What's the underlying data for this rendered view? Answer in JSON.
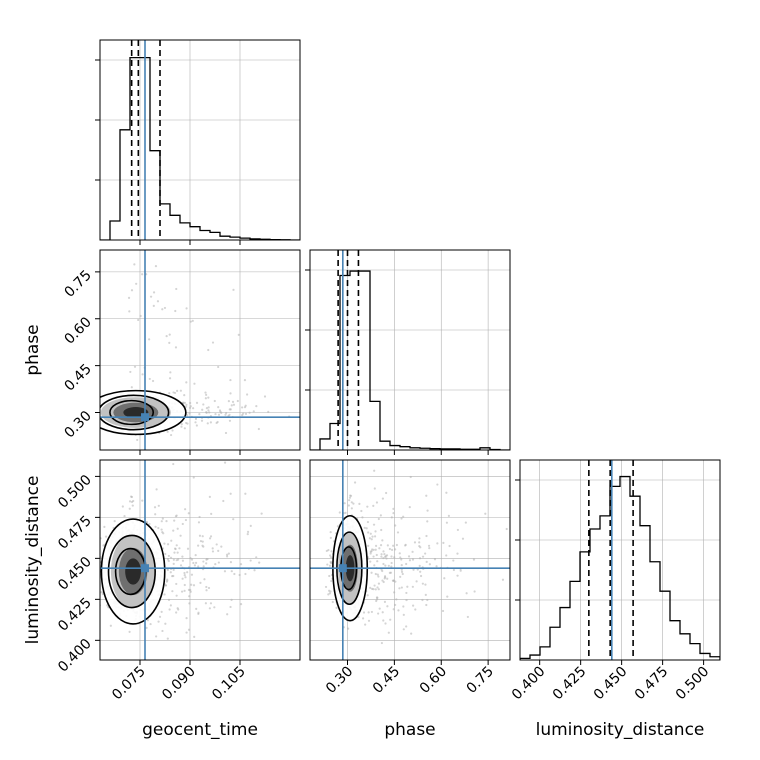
{
  "chart_data": {
    "type": "corner",
    "parameters": [
      {
        "name": "geocent_time",
        "label": "geocent_time",
        "range": [
          0.063,
          0.123
        ],
        "truth": 0.0765,
        "quantiles": [
          0.0725,
          0.0745,
          0.081
        ],
        "ticks": [
          0.075,
          0.09,
          0.105
        ],
        "tick_labels": [
          "0.075",
          "0.090",
          "0.105"
        ],
        "show_tick_labels": true
      },
      {
        "name": "phase",
        "label": "phase",
        "range": [
          0.18,
          0.82
        ],
        "truth": 0.285,
        "quantiles": [
          0.27,
          0.3,
          0.335
        ],
        "ticks": [
          0.3,
          0.45,
          0.6,
          0.75
        ],
        "tick_labels": [
          "0.30",
          "0.45",
          "0.60",
          "0.75"
        ],
        "show_tick_labels": true
      },
      {
        "name": "luminosity_distance",
        "label": "luminosity_distance",
        "range": [
          0.388,
          0.51
        ],
        "truth": 0.444,
        "quantiles": [
          0.43,
          0.443,
          0.457
        ],
        "ticks": [
          0.4,
          0.425,
          0.45,
          0.475,
          0.5
        ],
        "tick_labels": [
          "0.400",
          "0.425",
          "0.450",
          "0.475",
          "0.500"
        ],
        "show_tick_labels": true
      }
    ],
    "histograms": [
      {
        "param": "geocent_time",
        "bins": 20,
        "counts": [
          0,
          10,
          58,
          96,
          96,
          47,
          19,
          13,
          9,
          7,
          5,
          4,
          2,
          1.5,
          1,
          0.6,
          0.4,
          0.2,
          0.1,
          0
        ],
        "ymax": 100
      },
      {
        "param": "phase",
        "bins": 20,
        "counts": [
          0,
          5,
          12,
          79,
          81,
          81,
          22,
          4,
          2,
          1.5,
          1,
          0.8,
          0.6,
          0.5,
          0.5,
          0.3,
          0.3,
          1,
          0.2,
          0
        ],
        "ymax": 86
      },
      {
        "param": "luminosity_distance",
        "bins": 20,
        "counts": [
          0.5,
          1.5,
          4,
          10,
          16,
          24,
          33,
          40,
          44,
          53,
          56,
          50,
          41,
          30,
          21,
          12,
          8,
          5,
          2,
          1
        ],
        "ymax": 58
      }
    ],
    "scatter_panels": [
      {
        "x": "geocent_time",
        "y": "phase",
        "peak": [
          0.0715,
          0.3
        ],
        "spread": [
          0.004,
          0.022
        ],
        "contours": [
          [
            0.0065,
            0.038
          ],
          [
            0.0105,
            0.055
          ],
          [
            0.015,
            0.07
          ]
        ],
        "tail_x_to": 0.12
      },
      {
        "x": "geocent_time",
        "y": "luminosity_distance",
        "peak": [
          0.0715,
          0.442
        ],
        "spread": [
          0.004,
          0.012
        ],
        "contours": [
          [
            0.0045,
            0.014
          ],
          [
            0.007,
            0.022
          ],
          [
            0.0095,
            0.032
          ]
        ],
        "tail_x_to": 0.12
      },
      {
        "x": "phase",
        "y": "luminosity_distance",
        "peak": [
          0.3,
          0.444
        ],
        "spread": [
          0.022,
          0.012
        ],
        "contours": [
          [
            0.025,
            0.013
          ],
          [
            0.04,
            0.022
          ],
          [
            0.055,
            0.032
          ]
        ],
        "tail_x_to": 0.8
      }
    ],
    "colors": {
      "truth": "#4682b4",
      "hist": "#000000",
      "scatter": "#b0b0b0",
      "grid": "#b0b0b0"
    },
    "grid": true
  }
}
